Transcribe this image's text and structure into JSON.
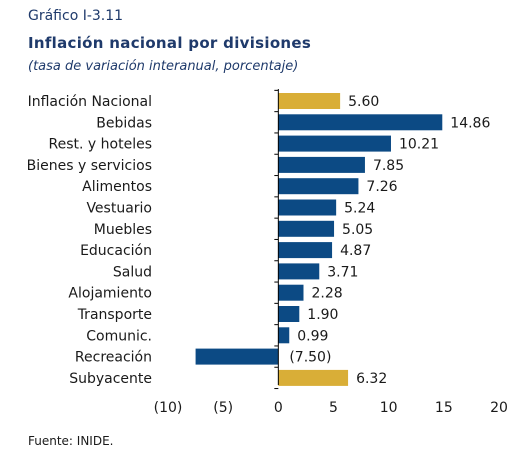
{
  "header": {
    "caption": "Gráfico I-3.11",
    "title": "Inflación nacional por divisiones",
    "subtitle": "(tasa de variación interanual, porcentaje)"
  },
  "footer": {
    "source": "Fuente: INIDE."
  },
  "colors": {
    "highlight": "#d9ae37",
    "primary": "#0c4a84",
    "axis": "#000000"
  },
  "chart_data": {
    "type": "bar",
    "orientation": "horizontal",
    "categories": [
      "Inflación Nacional",
      "Bebidas",
      "Rest. y hoteles",
      "Bienes y servicios",
      "Alimentos",
      "Vestuario",
      "Muebles",
      "Educación",
      "Salud",
      "Alojamiento",
      "Transporte",
      "Comunic.",
      "Recreación",
      "Subyacente"
    ],
    "values": [
      5.6,
      14.86,
      10.21,
      7.85,
      7.26,
      5.24,
      5.05,
      4.87,
      3.71,
      2.28,
      1.9,
      0.99,
      -7.5,
      6.32
    ],
    "value_labels": [
      "5.60",
      "14.86",
      "10.21",
      "7.85",
      "7.26",
      "5.24",
      "5.05",
      "4.87",
      "3.71",
      "2.28",
      "1.90",
      "0.99",
      "(7.50)",
      "6.32"
    ],
    "highlighted": [
      true,
      false,
      false,
      false,
      false,
      false,
      false,
      false,
      false,
      false,
      false,
      false,
      false,
      true
    ],
    "xlim": [
      -10,
      20
    ],
    "xticks": [
      -10,
      -5,
      0,
      5,
      10,
      15,
      20
    ],
    "xtick_labels": [
      "(10)",
      "(5)",
      "0",
      "5",
      "10",
      "15",
      "20"
    ],
    "grid": false,
    "legend": "none"
  }
}
